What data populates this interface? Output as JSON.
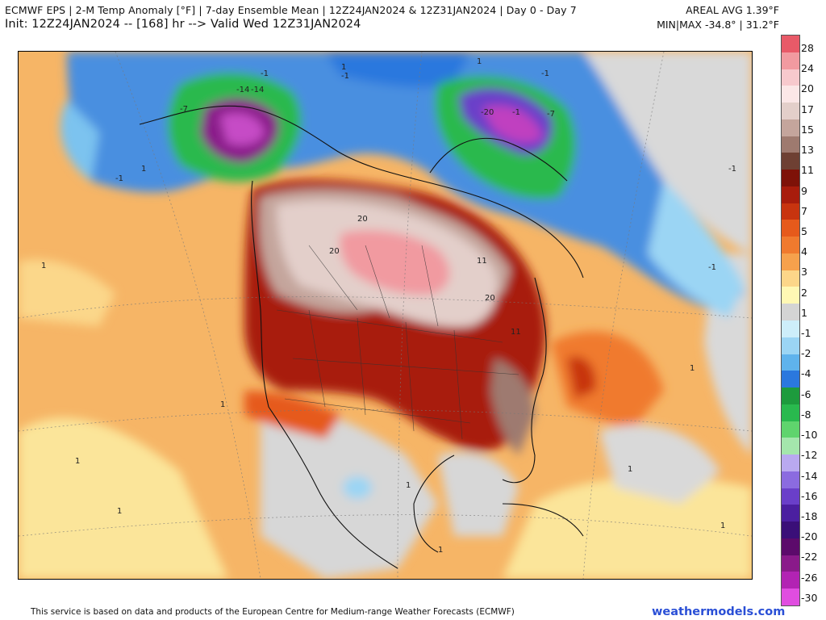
{
  "header": {
    "title": "ECMWF EPS | 2-M Temp Anomaly [°F] | 7-day Ensemble Mean | 12Z24JAN2024 & 12Z31JAN2024 | Day 0 - Day 7",
    "init": "Init: 12Z24JAN2024 -- [168] hr --> Valid Wed 12Z31JAN2024",
    "areal_avg": "AREAL AVG 1.39°F",
    "minmax": "MIN|MAX -34.8° | 31.2°F"
  },
  "map": {
    "contour_labels": [
      "20",
      "20",
      "20",
      "11",
      "11",
      "-14",
      "-14",
      "-20",
      "-7",
      "-7",
      "-1",
      "-1",
      "-1",
      "-1",
      "-1",
      "-1",
      "-1",
      "1",
      "1",
      "1",
      "1",
      "1",
      "1",
      "1",
      "1",
      "1",
      "1",
      "1",
      "1"
    ]
  },
  "colorbar": {
    "labels": [
      "28",
      "24",
      "20",
      "17",
      "15",
      "13",
      "11",
      "9",
      "7",
      "5",
      "4",
      "3",
      "2",
      "1",
      "-1",
      "-2",
      "-4",
      "-6",
      "-8",
      "-10",
      "-12",
      "-14",
      "-16",
      "-18",
      "-20",
      "-22",
      "-26",
      "-30"
    ],
    "colors": [
      "#e85a68",
      "#f19aa0",
      "#f7c9cd",
      "#fbe7e7",
      "#e3cfca",
      "#c4a59c",
      "#9e7a6f",
      "#6e4033",
      "#7e1208",
      "#a81c0c",
      "#c8340f",
      "#e65a1b",
      "#f07a2e",
      "#f6a14c",
      "#fcd689",
      "#fff8b4",
      "#d4d4d4",
      "#cdeefa",
      "#9bd5f4",
      "#5fb3ec",
      "#2b78de",
      "#1d9b3d",
      "#29b94e",
      "#5fd46d",
      "#a4e6ac",
      "#b9a9f0",
      "#8b6be0",
      "#6a3fc9",
      "#4b1fa0",
      "#3a0f78",
      "#5c0a6b",
      "#8a1a8a",
      "#b223b3",
      "#e04de0"
    ]
  },
  "footer": {
    "disclaimer": "This service is based on data and products of the European Centre for Medium-range Weather Forecasts (ECMWF)",
    "brand": "weathermodels.com"
  }
}
